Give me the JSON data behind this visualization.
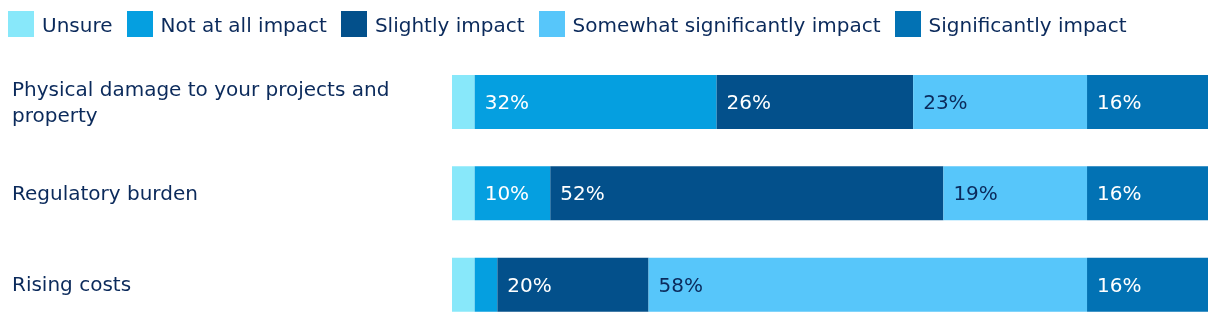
{
  "chart_data": {
    "type": "bar",
    "orientation": "horizontal",
    "stacked": true,
    "legend": "top left",
    "tick_labels": "y",
    "categories": [
      "Physical damage to your projects and property",
      "Regulatory burden",
      "Rising costs"
    ],
    "series": [
      {
        "name": "Unsure",
        "color": "#88e8fa",
        "values": [
          3,
          3,
          3
        ],
        "value_labels": [
          null,
          null,
          null
        ]
      },
      {
        "name": "Not at all impact",
        "color": "#059fe0",
        "values": [
          32,
          10,
          3
        ],
        "value_labels": [
          "32%",
          "10%",
          null
        ]
      },
      {
        "name": "Slightly impact",
        "color": "#03508b",
        "values": [
          26,
          52,
          20
        ],
        "value_labels": [
          "26%",
          "52%",
          "20%"
        ]
      },
      {
        "name": "Somewhat significantly impact",
        "color": "#57c6fa",
        "values": [
          23,
          19,
          58
        ],
        "value_labels": [
          "23%",
          "19%",
          "58%"
        ]
      },
      {
        "name": "Significantly impact",
        "color": "#0272b4",
        "values": [
          16,
          16,
          16
        ],
        "value_labels": [
          "16%",
          "16%",
          "16%"
        ]
      }
    ]
  }
}
